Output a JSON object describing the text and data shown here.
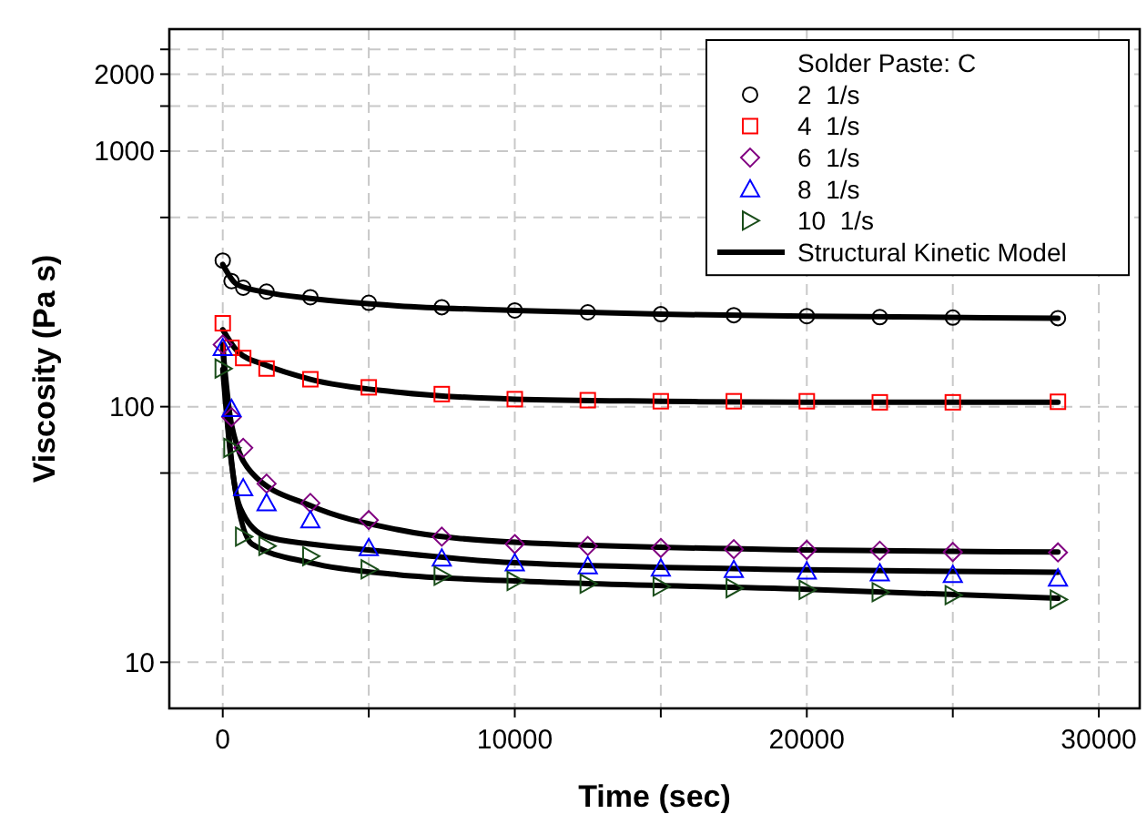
{
  "chart_data": {
    "type": "scatter",
    "xlabel": "Time (sec)",
    "ylabel": "Viscosity (Pa s)",
    "legend_title": "Solder Paste: C",
    "log": "y",
    "grid": true,
    "legend": "top right",
    "xlim": [
      -1830,
      31400
    ],
    "xticks": [
      0,
      {
        "value": 5000,
        "label": null
      },
      10000,
      {
        "value": 15000,
        "label": null
      },
      20000,
      {
        "value": 25000,
        "label": null
      },
      30000
    ],
    "ylim": [
      6.6,
      3000
    ],
    "yticks": [
      10,
      {
        "value": 55,
        "label": null
      },
      100,
      {
        "value": 550,
        "label": null
      },
      1000,
      {
        "value": 1500,
        "label": null
      },
      2000,
      {
        "value": 2500,
        "label": null
      }
    ],
    "x": [
      0,
      300,
      700,
      1500,
      3000,
      5000,
      7500,
      10000,
      12500,
      15000,
      17500,
      20000,
      22500,
      25000,
      28600
    ],
    "series": [
      {
        "name": "2  1/s",
        "color": "#000000",
        "marker": "circle",
        "values": [
          373,
          310,
          292,
          282,
          268,
          255,
          245,
          238,
          234,
          230,
          228,
          226,
          224,
          223,
          222
        ]
      },
      {
        "name": "4  1/s",
        "color": "#ff0000",
        "marker": "square",
        "values": [
          212,
          170,
          155,
          141,
          128,
          119,
          112,
          107,
          106,
          105,
          105,
          105,
          104,
          104,
          104.5
        ]
      },
      {
        "name": "6  1/s",
        "color": "#800080",
        "marker": "diamond",
        "values": [
          175,
          91,
          69,
          50,
          42,
          36,
          31,
          29,
          28.5,
          28,
          27.7,
          27.5,
          27.3,
          27,
          26.9
        ]
      },
      {
        "name": "8  1/s",
        "color": "#0000ff",
        "marker": "triangle",
        "values": [
          170,
          98,
          48,
          42,
          36,
          28,
          25.5,
          24.4,
          23.8,
          23.3,
          23,
          22.7,
          22.3,
          22,
          21.3
        ]
      },
      {
        "name": "10  1/s",
        "color": "#1a4d1a",
        "marker": "triangle-right",
        "values": [
          141,
          69,
          31,
          28.5,
          26,
          23.1,
          21.8,
          20.8,
          20.3,
          19.8,
          19.5,
          19.2,
          18.8,
          18.3,
          17.6
        ]
      },
      {
        "name": "Structural Kinetic Model",
        "type": "line",
        "color": "#000000",
        "x": [
          0,
          500,
          1500,
          3000,
          6000,
          10000,
          15000,
          20000,
          28600
        ],
        "values": [
          360,
          300,
          280,
          265,
          248,
          238,
          230,
          226,
          222
        ]
      },
      {
        "type": "line",
        "color": "#000000",
        "x": [
          0,
          500,
          1500,
          3000,
          6000,
          10000,
          15000,
          20000,
          28600
        ],
        "values": [
          200,
          165,
          145,
          128,
          114,
          107,
          105,
          104,
          104
        ]
      },
      {
        "type": "line",
        "color": "#000000",
        "x": [
          0,
          300,
          1000,
          3000,
          6000,
          10000,
          20000,
          28600
        ],
        "values": [
          170,
          85,
          55,
          41,
          33,
          29.5,
          27.5,
          27
        ]
      },
      {
        "type": "line",
        "color": "#000000",
        "x": [
          0,
          200,
          400,
          700,
          1500,
          3000,
          5000,
          10000,
          20000,
          28600
        ],
        "values": [
          175,
          80,
          50,
          38,
          31,
          29,
          27.5,
          24.5,
          23,
          22.5
        ]
      },
      {
        "type": "line",
        "color": "#000000",
        "x": [
          0,
          300,
          1000,
          3000,
          6000,
          10000,
          20000,
          28600
        ],
        "values": [
          140,
          60,
          29,
          24.5,
          22,
          20.8,
          19.3,
          17.8
        ]
      }
    ]
  }
}
